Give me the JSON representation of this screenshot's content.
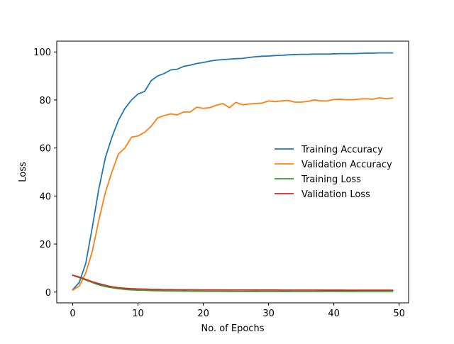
{
  "chart_data": {
    "type": "line",
    "title": "",
    "xlabel": "No. of Epochs",
    "ylabel": "Loss",
    "xlim": [
      -2.45,
      51.45
    ],
    "ylim": [
      -4.5,
      104.5
    ],
    "xticks": [
      0,
      10,
      20,
      30,
      40,
      50
    ],
    "yticks": [
      0,
      20,
      40,
      60,
      80,
      100
    ],
    "grid": false,
    "legend_position": "center-right",
    "x": [
      0,
      1,
      2,
      3,
      4,
      5,
      6,
      7,
      8,
      9,
      10,
      11,
      12,
      13,
      14,
      15,
      16,
      17,
      18,
      19,
      20,
      21,
      22,
      23,
      24,
      25,
      26,
      27,
      28,
      29,
      30,
      31,
      32,
      33,
      34,
      35,
      36,
      37,
      38,
      39,
      40,
      41,
      42,
      43,
      44,
      45,
      46,
      47,
      48,
      49
    ],
    "series": [
      {
        "name": "Training Accuracy",
        "color": "#1f77b4",
        "values": [
          1,
          4,
          12,
          27,
          43,
          56,
          64.5,
          71.5,
          76.5,
          80,
          82.5,
          83.5,
          88,
          90,
          91,
          92.5,
          92.8,
          94,
          94.5,
          95.2,
          95.6,
          96.2,
          96.6,
          96.8,
          97,
          97.2,
          97.3,
          97.7,
          98,
          98.2,
          98.3,
          98.5,
          98.6,
          98.8,
          98.9,
          99,
          99,
          99.1,
          99.1,
          99.1,
          99.2,
          99.3,
          99.3,
          99.3,
          99.4,
          99.5,
          99.5,
          99.6,
          99.6,
          99.6
        ]
      },
      {
        "name": "Validation Accuracy",
        "color": "#ff7f0e",
        "values": [
          0.8,
          2.5,
          8,
          17,
          30,
          41.5,
          50,
          57.5,
          60,
          64.5,
          65,
          66.5,
          69,
          72.5,
          73.5,
          74.2,
          73.8,
          75,
          75,
          77,
          76.5,
          76.8,
          77.8,
          78.5,
          76.8,
          79,
          78,
          78.3,
          78.5,
          78.7,
          79.6,
          79.3,
          79.6,
          79.8,
          79.1,
          79.1,
          79.4,
          80,
          79.6,
          79.6,
          80.2,
          80.3,
          80.1,
          80.1,
          80.4,
          80.5,
          80.3,
          80.9,
          80.5,
          80.8
        ]
      },
      {
        "name": "Training Loss",
        "color": "#2ca02c",
        "values": [
          7,
          6,
          5,
          4,
          3,
          2.3,
          1.8,
          1.4,
          1.1,
          0.9,
          0.8,
          0.75,
          0.6,
          0.55,
          0.5,
          0.45,
          0.42,
          0.4,
          0.38,
          0.35,
          0.33,
          0.32,
          0.3,
          0.29,
          0.28,
          0.27,
          0.26,
          0.25,
          0.24,
          0.23,
          0.22,
          0.22,
          0.21,
          0.21,
          0.2,
          0.2,
          0.19,
          0.19,
          0.18,
          0.18,
          0.18,
          0.17,
          0.17,
          0.17,
          0.16,
          0.16,
          0.16,
          0.15,
          0.15,
          0.15
        ]
      },
      {
        "name": "Validation Loss",
        "color": "#d62728",
        "values": [
          7,
          6.3,
          5.3,
          4.3,
          3.5,
          2.8,
          2.2,
          1.8,
          1.6,
          1.4,
          1.3,
          1.25,
          1.1,
          1.05,
          1.0,
          0.98,
          0.96,
          0.95,
          0.93,
          0.92,
          0.9,
          0.9,
          0.88,
          0.88,
          0.86,
          0.86,
          0.85,
          0.85,
          0.84,
          0.84,
          0.83,
          0.83,
          0.82,
          0.82,
          0.82,
          0.81,
          0.81,
          0.81,
          0.8,
          0.8,
          0.8,
          0.8,
          0.79,
          0.79,
          0.79,
          0.79,
          0.78,
          0.78,
          0.78,
          0.78
        ]
      }
    ]
  }
}
